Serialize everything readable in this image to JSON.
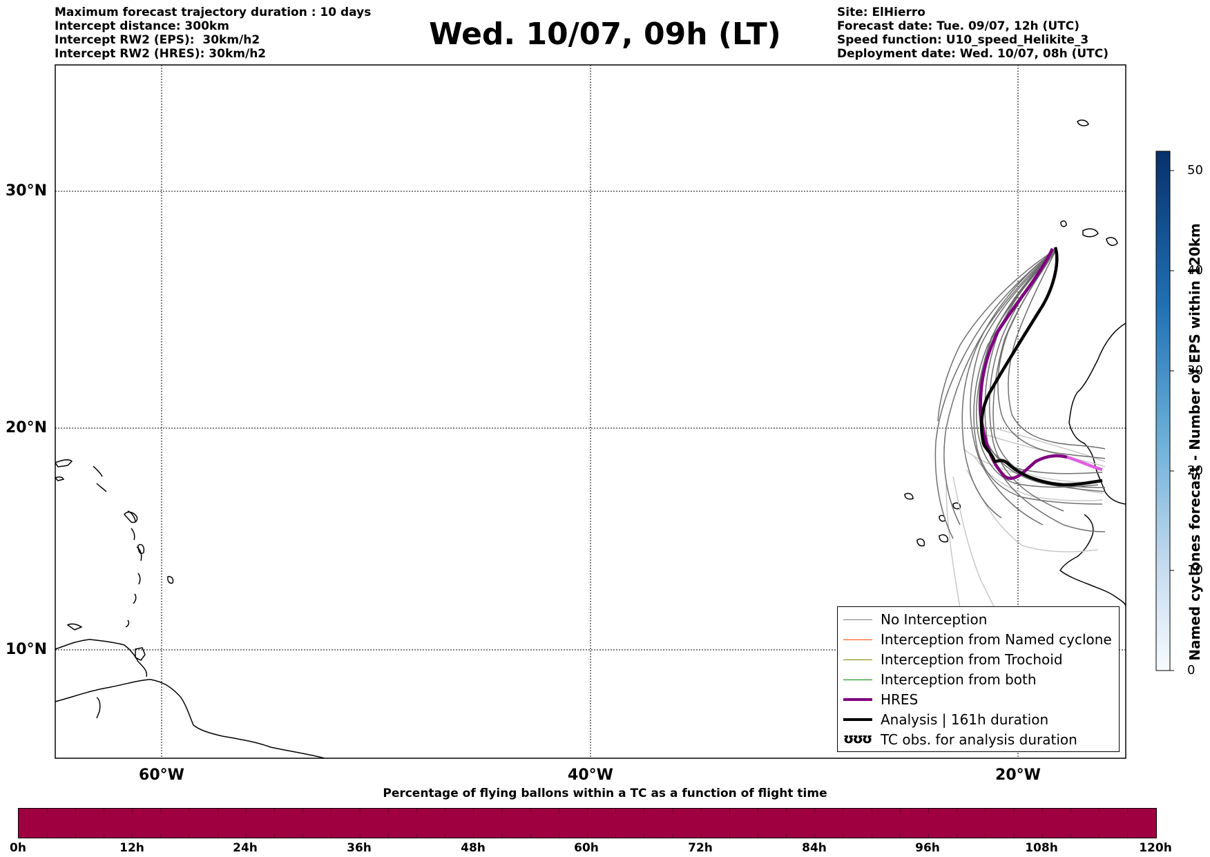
{
  "header_left": [
    "Maximum forecast trajectory duration : 10 days",
    "Intercept distance: 300km",
    "Intercept RW2 (EPS):  30km/h2",
    "Intercept RW2 (HRES): 30km/h2"
  ],
  "title": "Wed. 10/07, 09h (LT)",
  "header_right": [
    "Site: ElHierro",
    "Forecast date: Tue. 09/07, 12h (UTC)",
    "Speed function: U10_speed_Helikite_3",
    "Deployment date: Wed. 10/07, 08h (UTC)"
  ],
  "map": {
    "lat_labels": [
      "30°N",
      "20°N",
      "10°N"
    ],
    "lon_labels": [
      "60°W",
      "40°W",
      "20°W"
    ],
    "gridline_style": "dotted"
  },
  "legend": [
    {
      "label": "No Interception",
      "color": "#808080",
      "style": "thin"
    },
    {
      "label": "Interception from Named cyclone",
      "color": "#ff4500",
      "style": "thin"
    },
    {
      "label": "Interception from Trochoid",
      "color": "#808000",
      "style": "thin"
    },
    {
      "label": "Interception from both",
      "color": "#008000",
      "style": "thin"
    },
    {
      "label": "HRES",
      "color": "#800080",
      "style": "thick"
    },
    {
      "label": "Analysis | 161h duration",
      "color": "#000000",
      "style": "thick"
    },
    {
      "label": "TC obs. for analysis duration",
      "icon": "cyclone-icon",
      "glyph": "ʊʊʊ"
    }
  ],
  "colorbar": {
    "label": "Named cyclones forecast - Number of EPS within 120km",
    "ticks": [
      "50",
      "40",
      "30",
      "20",
      "10",
      "0"
    ],
    "range": [
      0,
      52
    ],
    "colormap": "Blues"
  },
  "time_bar": {
    "title": "Percentage of flying ballons within a TC as a function of flight time",
    "ticks": [
      "0h",
      "12h",
      "24h",
      "36h",
      "48h",
      "60h",
      "72h",
      "84h",
      "96h",
      "108h",
      "120h"
    ],
    "fill_color": "#9e0040",
    "fill_fraction": 1.0
  },
  "colors": {
    "hres": "#800080",
    "hres_light": "#e060e0",
    "analysis": "#000000",
    "eps": "#6e6e6e",
    "eps_light": "#c8c8c8"
  }
}
